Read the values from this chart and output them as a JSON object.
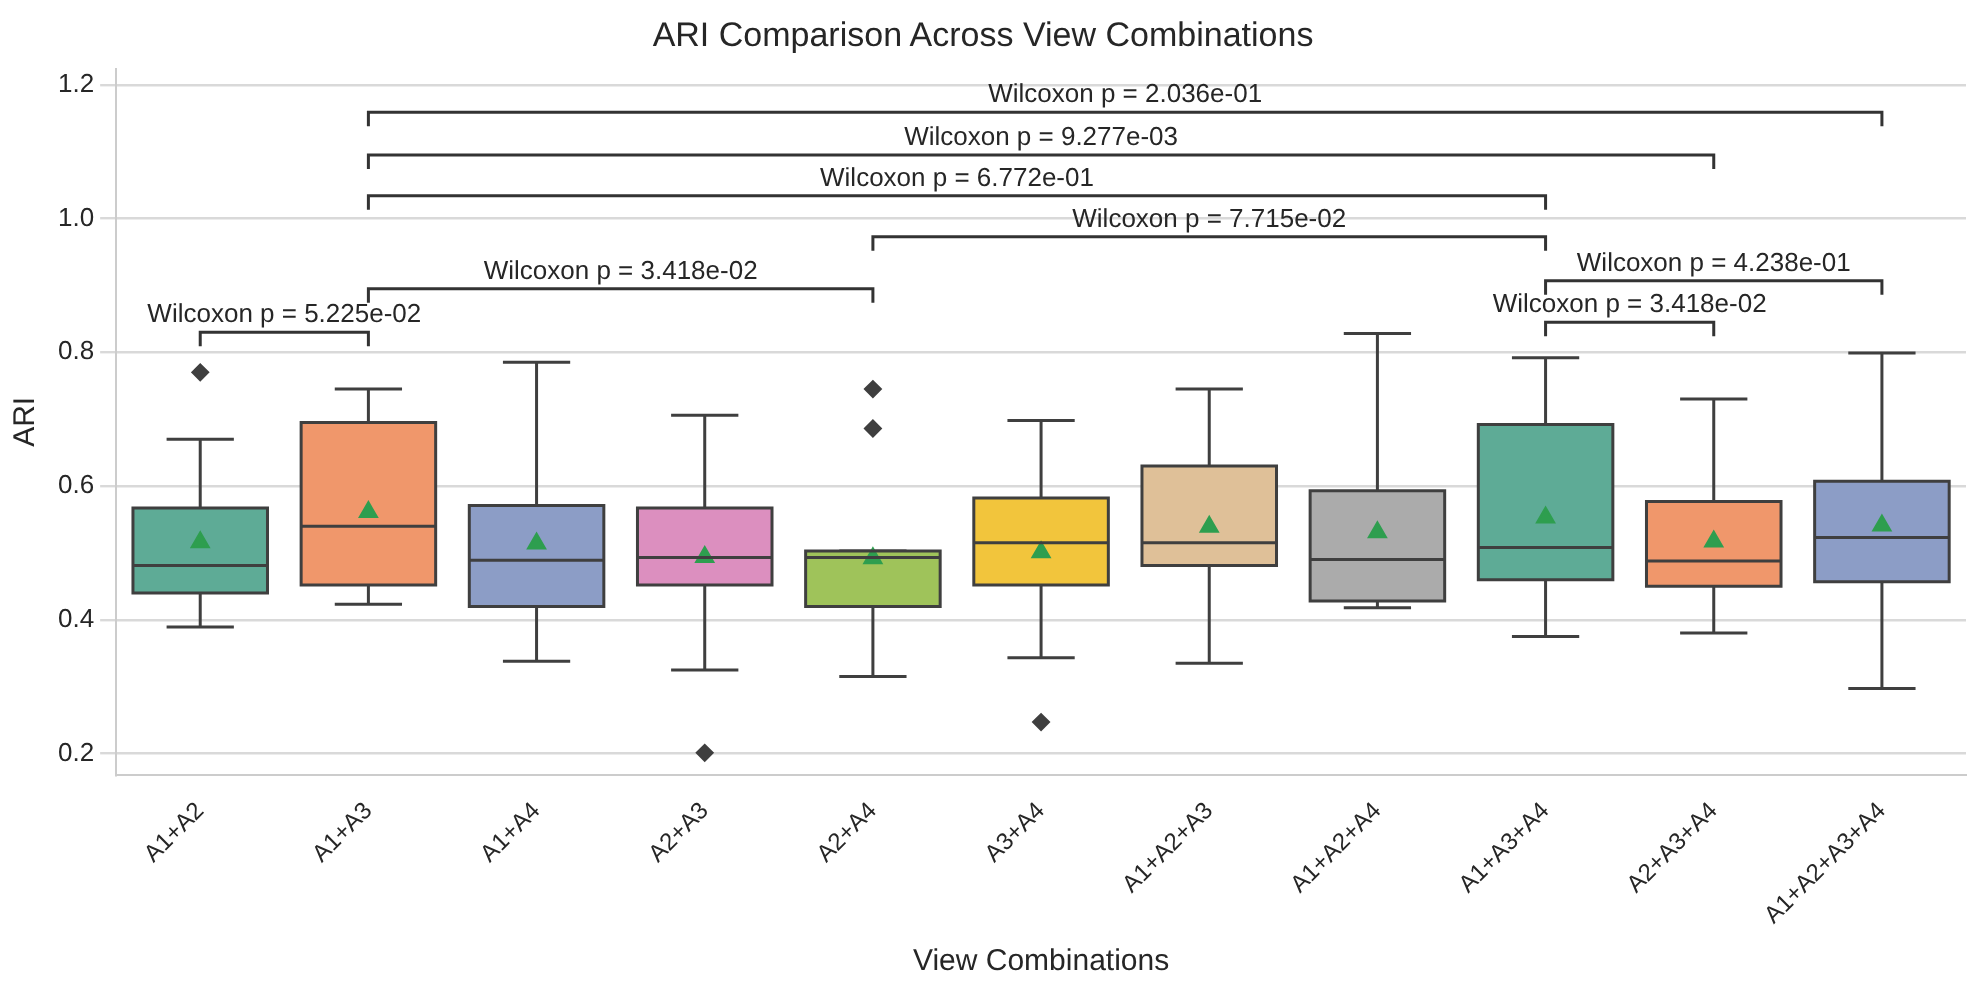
{
  "chart_data": {
    "type": "box",
    "title": "ARI Comparison Across View Combinations",
    "xlabel": "View Combinations",
    "ylabel": "ARI",
    "categories": [
      "A1+A2",
      "A1+A3",
      "A1+A4",
      "A2+A3",
      "A2+A4",
      "A3+A4",
      "A1+A2+A3",
      "A1+A2+A4",
      "A1+A3+A4",
      "A2+A3+A4",
      "A1+A2+A3+A4"
    ],
    "colors": [
      "#5eab96",
      "#f0976b",
      "#8c9dc6",
      "#dc8fbf",
      "#9fc35a",
      "#f2c53c",
      "#dfc098",
      "#ababab",
      "#5eab96",
      "#f0976b",
      "#8c9dc6"
    ],
    "boxes": [
      {
        "low": 0.389,
        "q1": 0.44,
        "median": 0.481,
        "q3": 0.567,
        "high": 0.67,
        "mean": 0.516,
        "outliers": [
          0.77
        ]
      },
      {
        "low": 0.423,
        "q1": 0.452,
        "median": 0.54,
        "q3": 0.695,
        "high": 0.745,
        "mean": 0.561
      },
      {
        "low": 0.338,
        "q1": 0.42,
        "median": 0.489,
        "q3": 0.571,
        "high": 0.785,
        "mean": 0.514
      },
      {
        "low": 0.325,
        "q1": 0.452,
        "median": 0.493,
        "q3": 0.567,
        "high": 0.706,
        "mean": 0.494,
        "outliers": [
          0.201
        ]
      },
      {
        "low": 0.315,
        "q1": 0.42,
        "median": 0.493,
        "q3": 0.503,
        "high": 0.503,
        "mean": 0.492,
        "outliers": [
          0.745,
          0.686
        ]
      },
      {
        "low": 0.343,
        "q1": 0.452,
        "median": 0.515,
        "q3": 0.582,
        "high": 0.698,
        "mean": 0.501,
        "outliers": [
          0.247
        ]
      },
      {
        "low": 0.335,
        "q1": 0.481,
        "median": 0.515,
        "q3": 0.63,
        "high": 0.745,
        "mean": 0.539
      },
      {
        "low": 0.418,
        "q1": 0.428,
        "median": 0.49,
        "q3": 0.593,
        "high": 0.828,
        "mean": 0.531
      },
      {
        "low": 0.375,
        "q1": 0.46,
        "median": 0.508,
        "q3": 0.692,
        "high": 0.792,
        "mean": 0.553
      },
      {
        "low": 0.38,
        "q1": 0.45,
        "median": 0.488,
        "q3": 0.577,
        "high": 0.73,
        "mean": 0.517
      },
      {
        "low": 0.297,
        "q1": 0.457,
        "median": 0.523,
        "q3": 0.607,
        "high": 0.799,
        "mean": 0.541
      }
    ],
    "ylim": [
      0.168,
      1.224
    ],
    "yticks": [
      0.2,
      0.4,
      0.6,
      0.8,
      {
        "value": 1,
        "label": "1.0"
      },
      1.2
    ],
    "grid": "y",
    "annotations": [
      "Wilcoxon p = 2.036e-01",
      "Wilcoxon p = 9.277e-03",
      "Wilcoxon p = 6.772e-01",
      "Wilcoxon p = 7.715e-02",
      "Wilcoxon p = 4.238e-01",
      "Wilcoxon p = 3.418e-02",
      "Wilcoxon p = 3.418e-02",
      "Wilcoxon p = 5.225e-02"
    ]
  }
}
